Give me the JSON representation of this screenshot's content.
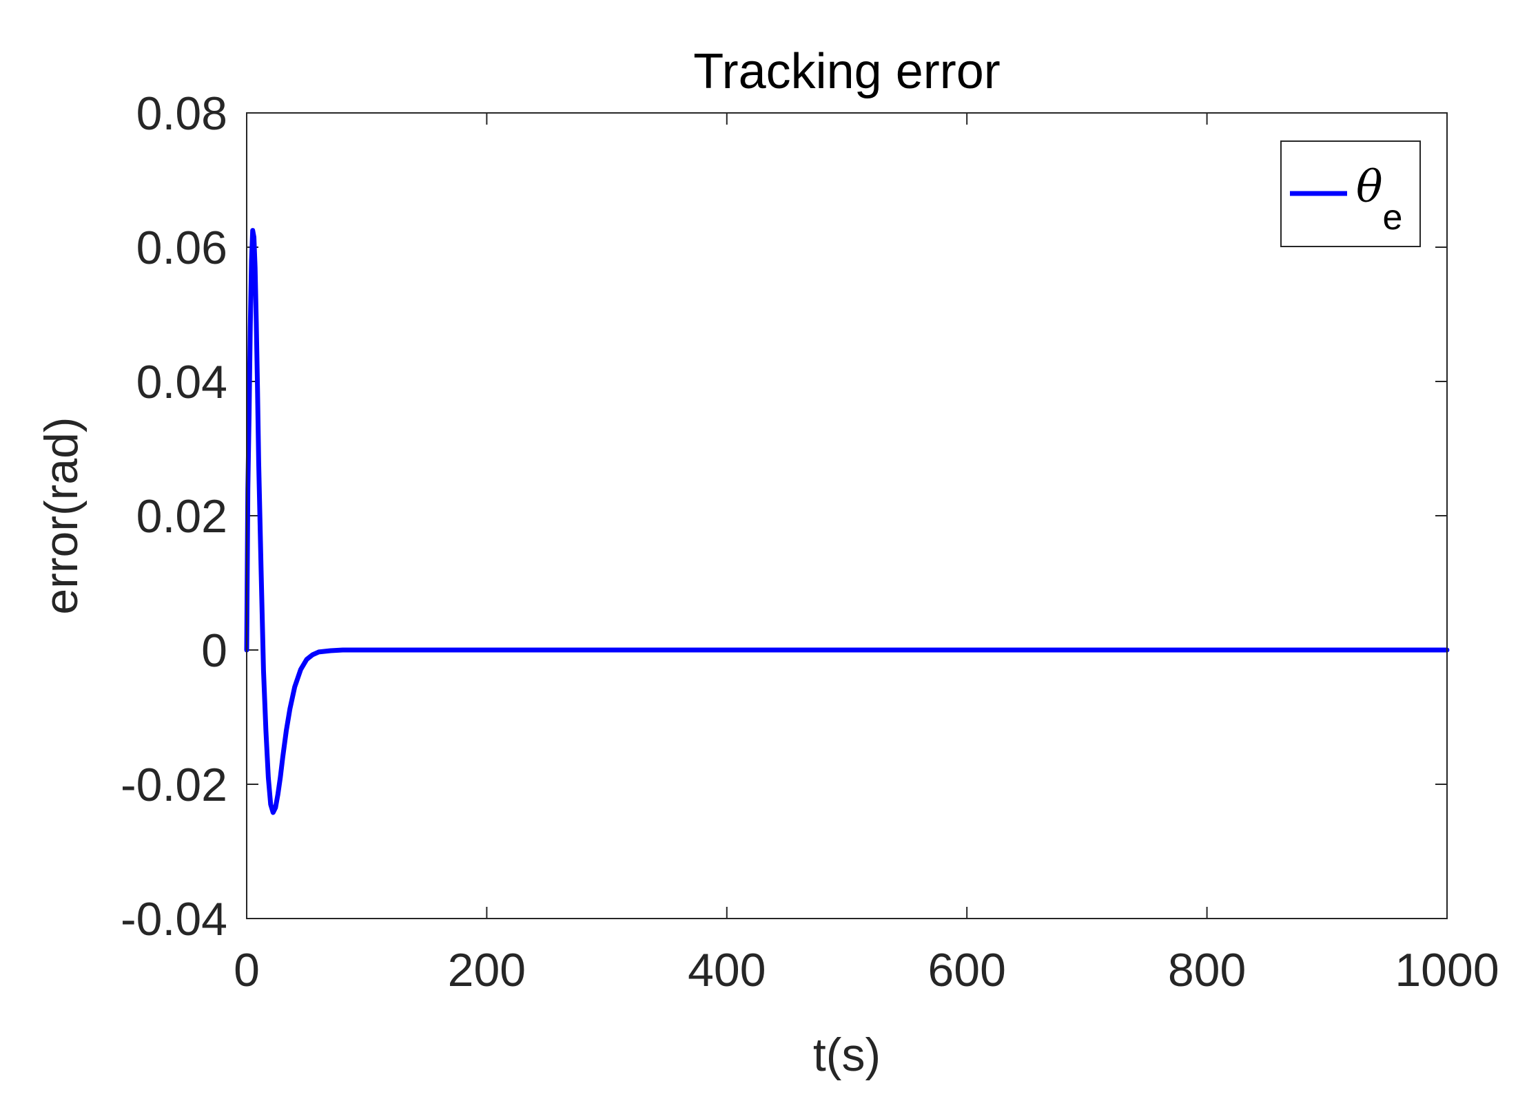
{
  "chart_data": {
    "type": "line",
    "title": "Tracking error",
    "xlabel": "t(s)",
    "ylabel": "error(rad)",
    "xlim": [
      0,
      1000
    ],
    "ylim": [
      -0.04,
      0.08
    ],
    "xticks": [
      0,
      200,
      400,
      600,
      800,
      1000
    ],
    "xtick_labels": [
      "0",
      "200",
      "400",
      "600",
      "800",
      "1000"
    ],
    "yticks": [
      -0.04,
      -0.02,
      0,
      0.02,
      0.04,
      0.06,
      0.08
    ],
    "ytick_labels": [
      "-0.04",
      "-0.02",
      "0",
      "0.02",
      "0.04",
      "0.06",
      "0.08"
    ],
    "grid": false,
    "legend_position": "top-right",
    "series": [
      {
        "name": "θe",
        "legend_symbol": "θ",
        "legend_subscript": "e",
        "color": "#0000ff",
        "x": [
          0,
          1,
          2,
          3,
          4,
          5,
          6,
          7,
          8,
          9,
          10,
          12,
          14,
          16,
          18,
          20,
          22,
          24,
          26,
          28,
          30,
          33,
          36,
          40,
          45,
          50,
          55,
          60,
          70,
          80,
          90,
          100,
          120,
          150,
          200,
          300,
          400,
          500,
          600,
          700,
          800,
          900,
          1000
        ],
        "y": [
          0,
          0.024,
          0.035,
          0.048,
          0.058,
          0.0625,
          0.0615,
          0.057,
          0.049,
          0.039,
          0.028,
          0.012,
          -0.003,
          -0.012,
          -0.019,
          -0.023,
          -0.0242,
          -0.0235,
          -0.0215,
          -0.019,
          -0.016,
          -0.012,
          -0.0088,
          -0.0055,
          -0.0029,
          -0.0014,
          -0.0007,
          -0.0003,
          -0.0001,
          0,
          0,
          0,
          0,
          0,
          0,
          0,
          0,
          0,
          0,
          0,
          0,
          0,
          0
        ]
      }
    ]
  }
}
